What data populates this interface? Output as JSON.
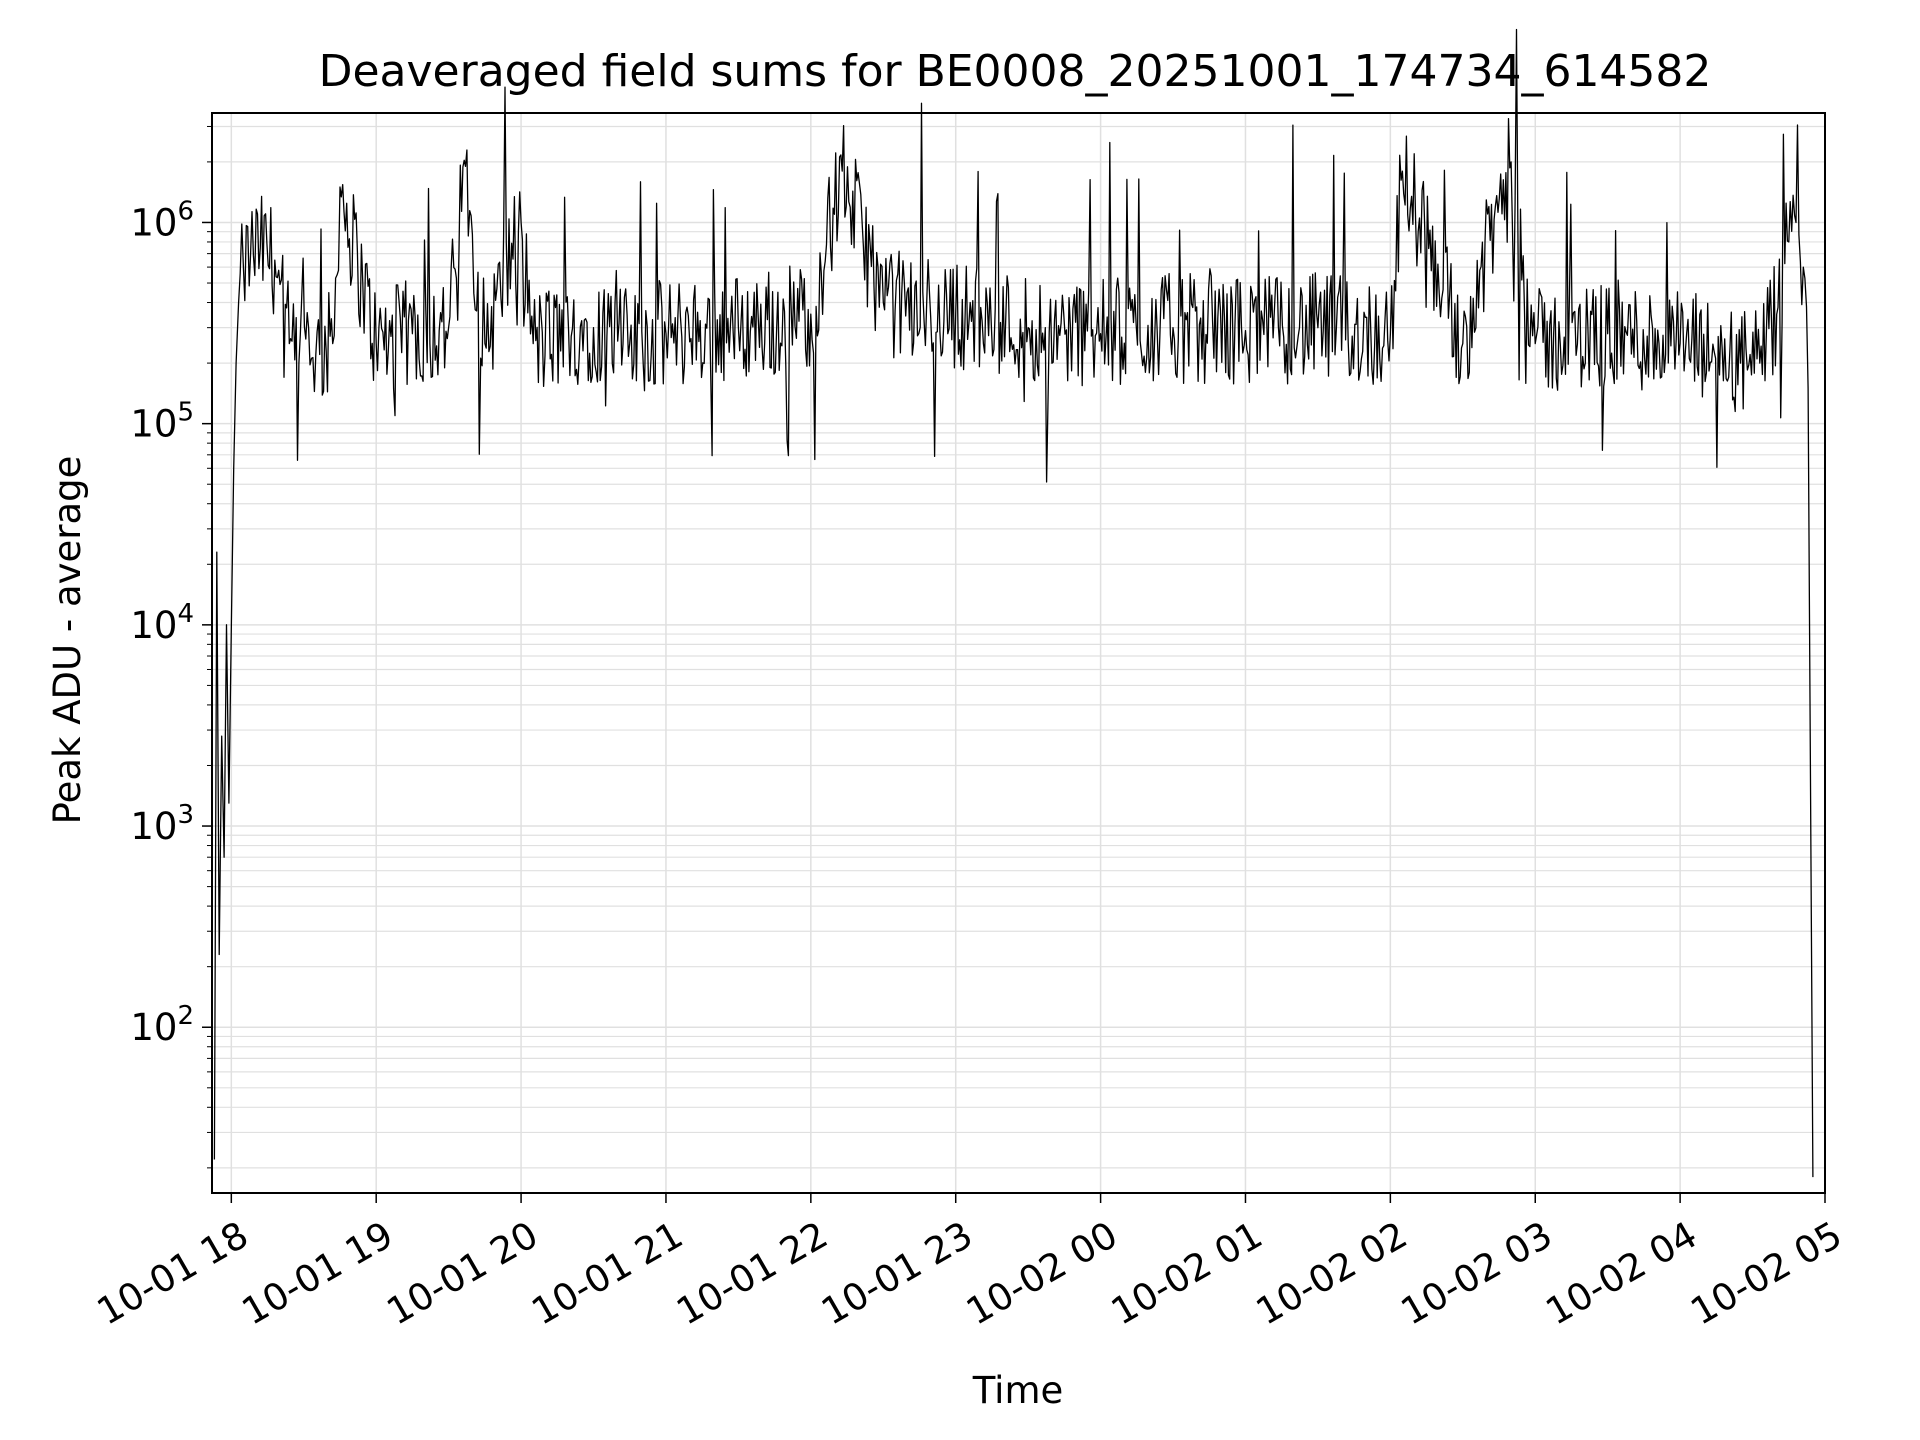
{
  "chart_data": {
    "type": "line",
    "title": "Deaveraged field sums for BE0008_20251001_174734_614582",
    "xlabel": "Time",
    "ylabel": "Peak ADU - average",
    "yscale": "log",
    "ylim": [
      15,
      3500000
    ],
    "xlim": [
      "2025-10-01 17:52",
      "2025-10-02 05:00"
    ],
    "grid": true,
    "grid_color": "#e0e0e0",
    "line_color": "#000000",
    "x_ticks": [
      "10-01 18",
      "10-01 19",
      "10-01 20",
      "10-01 21",
      "10-01 22",
      "10-01 23",
      "10-02 00",
      "10-02 01",
      "10-02 02",
      "10-02 03",
      "10-02 04",
      "10-02 05"
    ],
    "y_ticks": [
      {
        "value": 100,
        "base": "10",
        "exp": "2"
      },
      {
        "value": 1000,
        "base": "10",
        "exp": "3"
      },
      {
        "value": 10000,
        "base": "10",
        "exp": "4"
      },
      {
        "value": 100000,
        "base": "10",
        "exp": "5"
      },
      {
        "value": 1000000,
        "base": "10",
        "exp": "6"
      }
    ],
    "series": [
      {
        "name": "",
        "x": [
          "2025-10-01 17:53",
          "2025-10-01 17:54",
          "2025-10-01 17:55",
          "2025-10-01 17:56",
          "2025-10-01 17:57",
          "2025-10-01 17:58",
          "2025-10-01 17:59",
          "2025-10-01 18:00",
          "2025-10-01 18:01",
          "2025-10-01 18:02",
          "2025-10-01 18:03",
          "2025-10-01 18:05",
          "2025-10-01 18:08",
          "2025-10-01 18:12",
          "2025-10-01 18:18",
          "2025-10-01 18:24",
          "2025-10-01 18:28",
          "2025-10-01 18:32",
          "2025-10-01 18:35",
          "2025-10-01 18:42",
          "2025-10-01 18:45",
          "2025-10-01 19:00",
          "2025-10-01 19:15",
          "2025-10-01 19:30",
          "2025-10-01 19:37",
          "2025-10-01 19:45",
          "2025-10-01 20:00",
          "2025-10-01 20:05",
          "2025-10-01 20:30",
          "2025-10-01 20:45",
          "2025-10-01 21:00",
          "2025-10-01 21:30",
          "2025-10-01 22:00",
          "2025-10-01 22:13",
          "2025-10-01 22:30",
          "2025-10-01 23:00",
          "2025-10-01 23:30",
          "2025-10-02 00:00",
          "2025-10-02 00:30",
          "2025-10-02 01:00",
          "2025-10-02 01:30",
          "2025-10-02 02:00",
          "2025-10-02 02:05",
          "2025-10-02 02:30",
          "2025-10-02 02:50",
          "2025-10-02 03:00",
          "2025-10-02 03:30",
          "2025-10-02 04:00",
          "2025-10-02 04:25",
          "2025-10-02 04:33",
          "2025-10-02 04:40",
          "2025-10-02 04:45",
          "2025-10-02 04:48",
          "2025-10-02 04:51",
          "2025-10-02 04:53",
          "2025-10-02 04:55"
        ],
        "y": [
          22,
          23000,
          230,
          2800,
          700,
          10000,
          1300,
          9500,
          60000,
          200000,
          400000,
          600000,
          700000,
          750000,
          650000,
          250000,
          200000,
          300000,
          220000,
          250000,
          1500000,
          250000,
          280000,
          300000,
          1900000,
          250000,
          1000000,
          250000,
          300000,
          250000,
          280000,
          300000,
          350000,
          1800000,
          400000,
          350000,
          300000,
          280000,
          300000,
          290000,
          300000,
          280000,
          1800000,
          250000,
          2000000,
          250000,
          280000,
          250000,
          200000,
          200000,
          350000,
          800000,
          1000000,
          600000,
          150000,
          18
        ]
      }
    ]
  }
}
